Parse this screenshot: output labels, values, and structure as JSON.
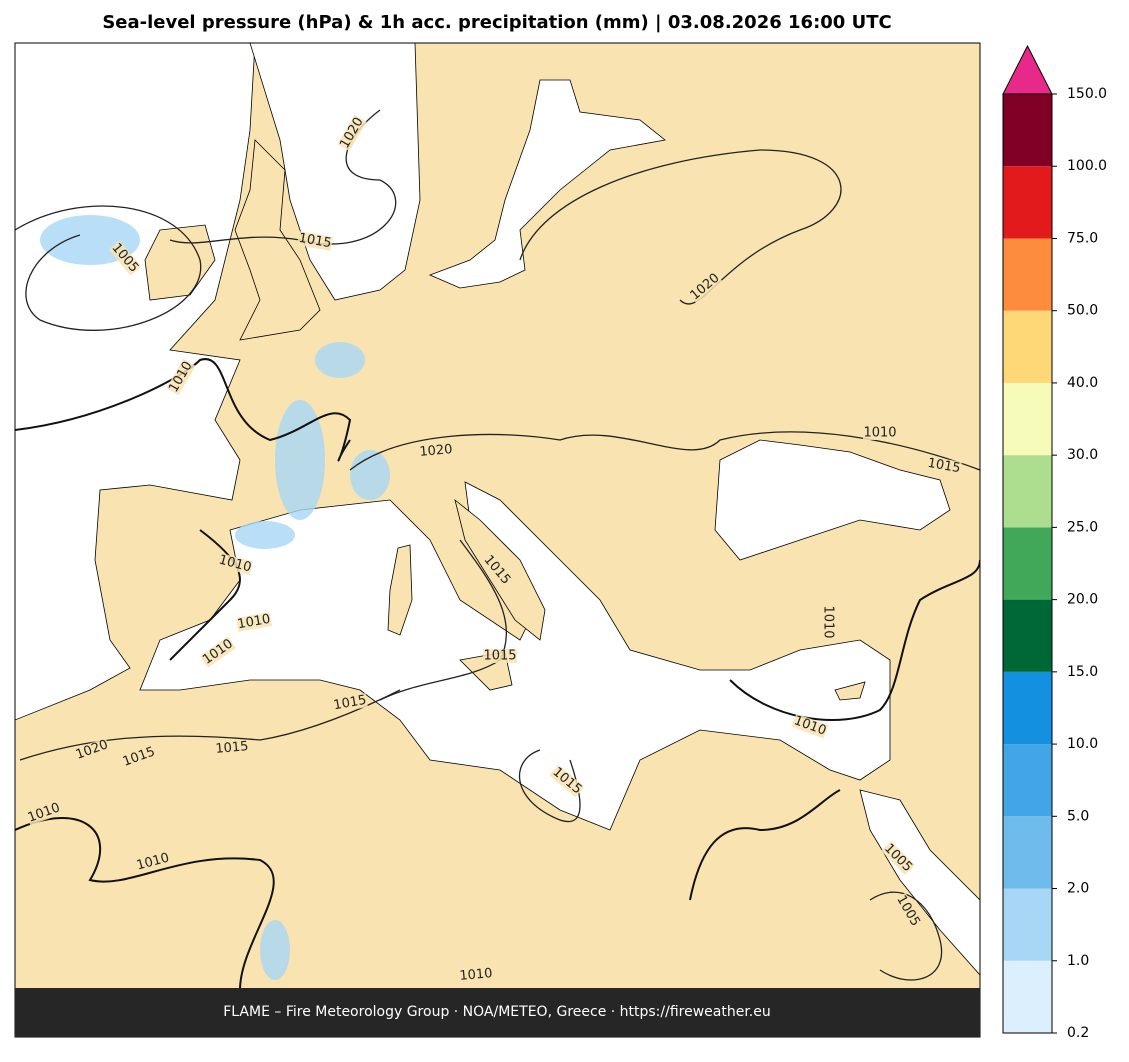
{
  "title": "Sea-level pressure (hPa) & 1h acc. precipitation (mm)  |  03.08.2026 16:00 UTC",
  "footer": "FLAME – Fire Meteorology Group · NOA/METEO, Greece · https://fireweather.eu",
  "map": {
    "contour_labels": [
      1020,
      1015,
      1005,
      1010,
      1020,
      1020,
      1010,
      1015,
      1010,
      1015,
      1010,
      1010,
      1010,
      1015,
      1010,
      1015,
      1015,
      1020,
      1015,
      1015,
      1010,
      1010,
      1005,
      1005,
      1010
    ]
  },
  "colorbar": {
    "levels": [
      {
        "value": 0.2,
        "label": "0.2"
      },
      {
        "value": 1,
        "label": "1.0"
      },
      {
        "value": 2,
        "label": "2.0"
      },
      {
        "value": 5,
        "label": "5.0"
      },
      {
        "value": 10,
        "label": "10.0"
      },
      {
        "value": 15,
        "label": "15.0"
      },
      {
        "value": 20,
        "label": "20.0"
      },
      {
        "value": 25,
        "label": "25.0"
      },
      {
        "value": 30,
        "label": "30.0"
      },
      {
        "value": 40,
        "label": "40.0"
      },
      {
        "value": 50,
        "label": "50.0"
      },
      {
        "value": 75,
        "label": "75.0"
      },
      {
        "value": 100,
        "label": "100.0"
      },
      {
        "value": 150,
        "label": "150.0"
      }
    ],
    "colors": [
      "#dbeffd",
      "#a8d7f6",
      "#6fbcec",
      "#42a6e6",
      "#1490e0",
      "#006837",
      "#41a85a",
      "#addd8e",
      "#f7fbb9",
      "#fed777",
      "#fd8d3c",
      "#e31a1c",
      "#800026"
    ],
    "extend_color": "#e7298a"
  }
}
